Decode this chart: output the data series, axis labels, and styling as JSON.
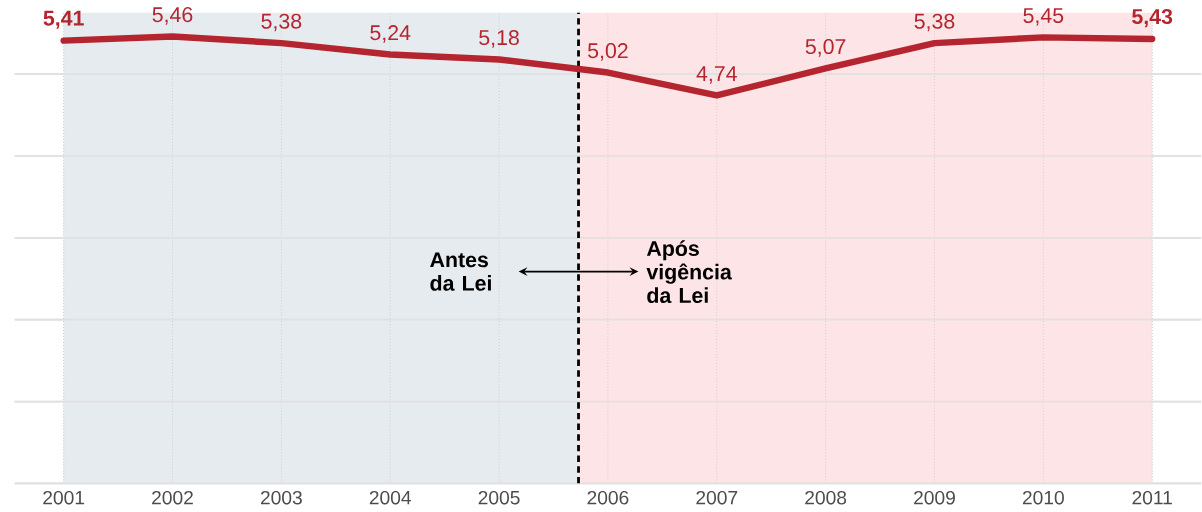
{
  "chart_data": {
    "type": "line",
    "x": [
      2001,
      2002,
      2003,
      2004,
      2005,
      2006,
      2007,
      2008,
      2009,
      2010,
      2011
    ],
    "series": [
      {
        "color": "#b5252f",
        "values": [
          5.41,
          5.46,
          5.38,
          5.24,
          5.18,
          5.02,
          4.74,
          5.07,
          5.38,
          5.45,
          5.43
        ],
        "value_labels": [
          "5,41",
          "5,46",
          "5,38",
          "5,24",
          "5,18",
          "5,02",
          "4,74",
          "5,07",
          "5,38",
          "5,45",
          "5,43"
        ]
      }
    ],
    "xlim": [
      2000.55,
      2011.45
    ],
    "xticks": [
      2001,
      2002,
      2003,
      2004,
      2005,
      2006,
      2007,
      2008,
      2009,
      2010,
      2011
    ],
    "ylim": [
      0,
      5.75
    ],
    "yticks": [
      {
        "value": 0,
        "label": null
      },
      {
        "value": 1,
        "label": null
      },
      {
        "value": 2,
        "label": null
      },
      {
        "value": 3,
        "label": null
      },
      {
        "value": 4,
        "label": null
      },
      {
        "value": 5,
        "label": null
      }
    ],
    "tick_labels": "x",
    "grid": true,
    "marker": "none",
    "line_style": "solid",
    "ref_lines": [
      {
        "axis": "x",
        "value": 2005.73,
        "color": "#000000",
        "line_style": "dashed"
      }
    ],
    "bands": [
      {
        "axis": "x",
        "from": 2001,
        "to": 2005.73,
        "label": "Antes da Lei",
        "color": "#e6ebef"
      },
      {
        "axis": "x",
        "from": 2005.73,
        "to": 2011,
        "label": "Após vigência da Lei",
        "color": "#fde4e6"
      }
    ]
  }
}
